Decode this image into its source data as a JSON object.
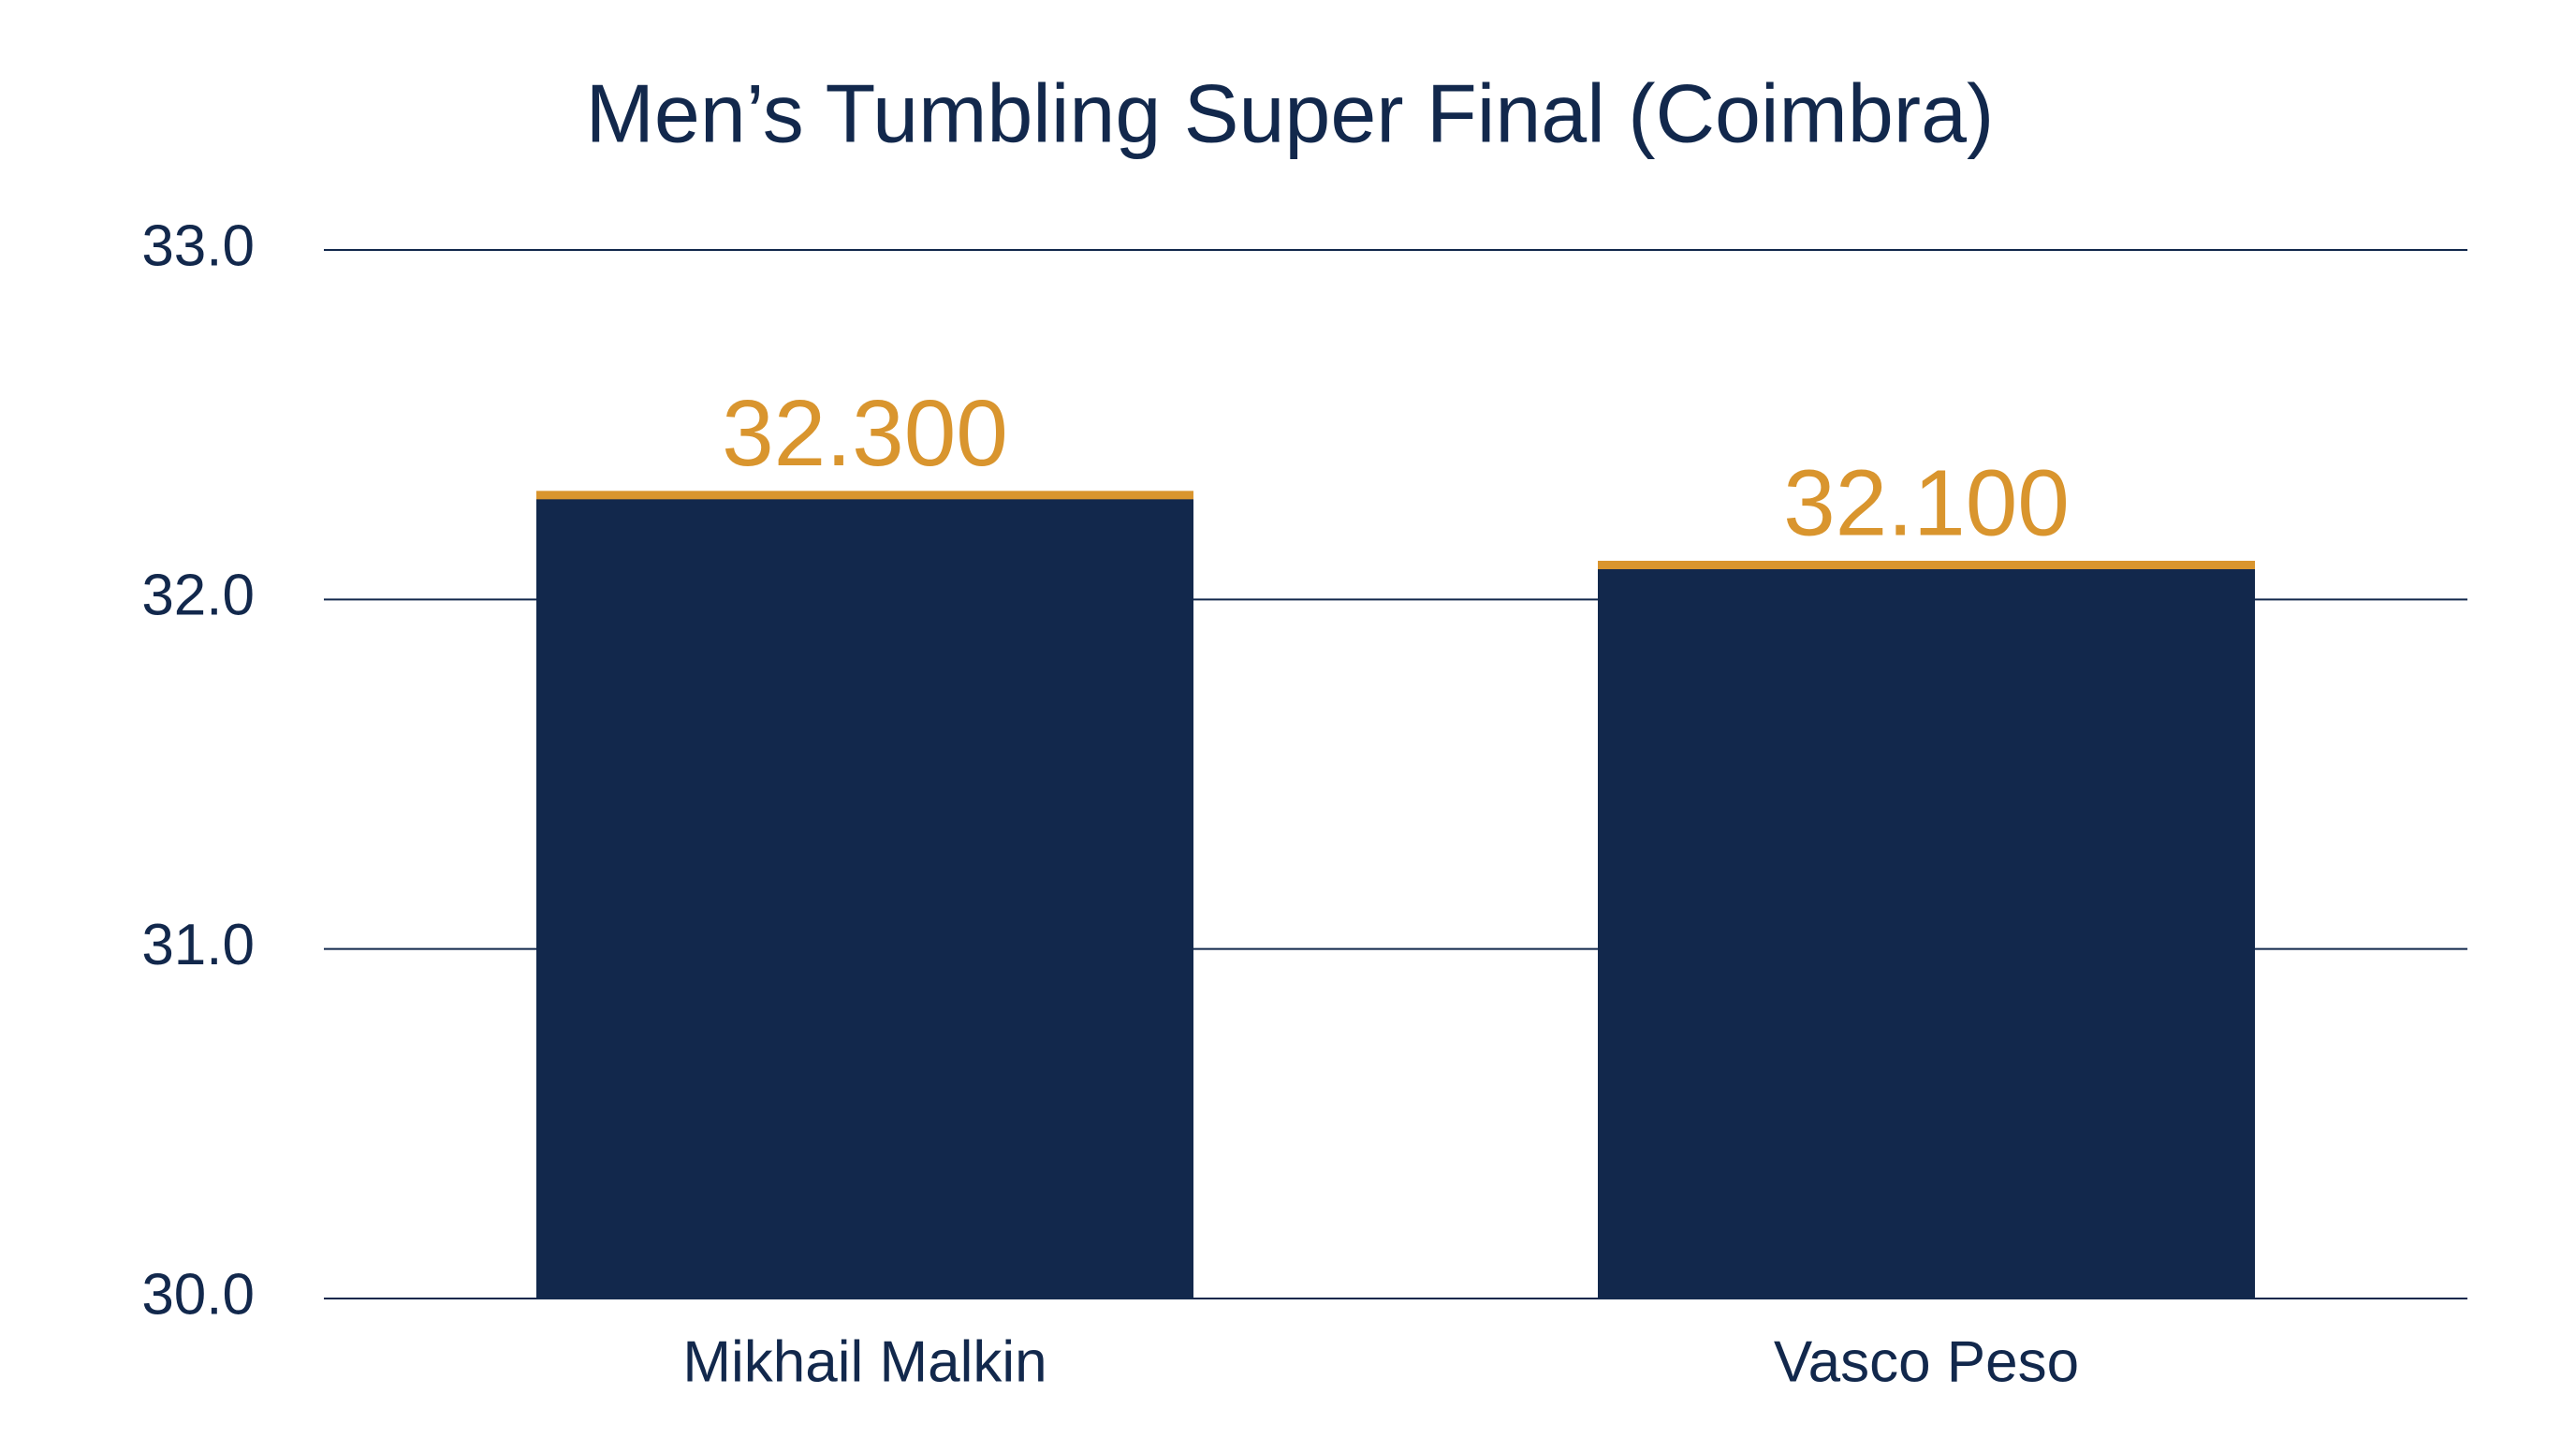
{
  "chart_data": {
    "type": "bar",
    "title": "Men’s Tumbling Super Final (Coimbra)",
    "categories": [
      "Mikhail Malkin",
      "Vasco Peso"
    ],
    "values": [
      32.3,
      32.1
    ],
    "value_labels": [
      "32.300",
      "32.100"
    ],
    "color": "#12284c",
    "accent_color": "#d9952e",
    "ylim": [
      30,
      33
    ],
    "yticks": [
      {
        "value": 30,
        "label": "30.0"
      },
      {
        "value": 31,
        "label": "31.0"
      },
      {
        "value": 32,
        "label": "32.0"
      },
      {
        "value": 33,
        "label": "33.0"
      }
    ],
    "grid": true
  }
}
